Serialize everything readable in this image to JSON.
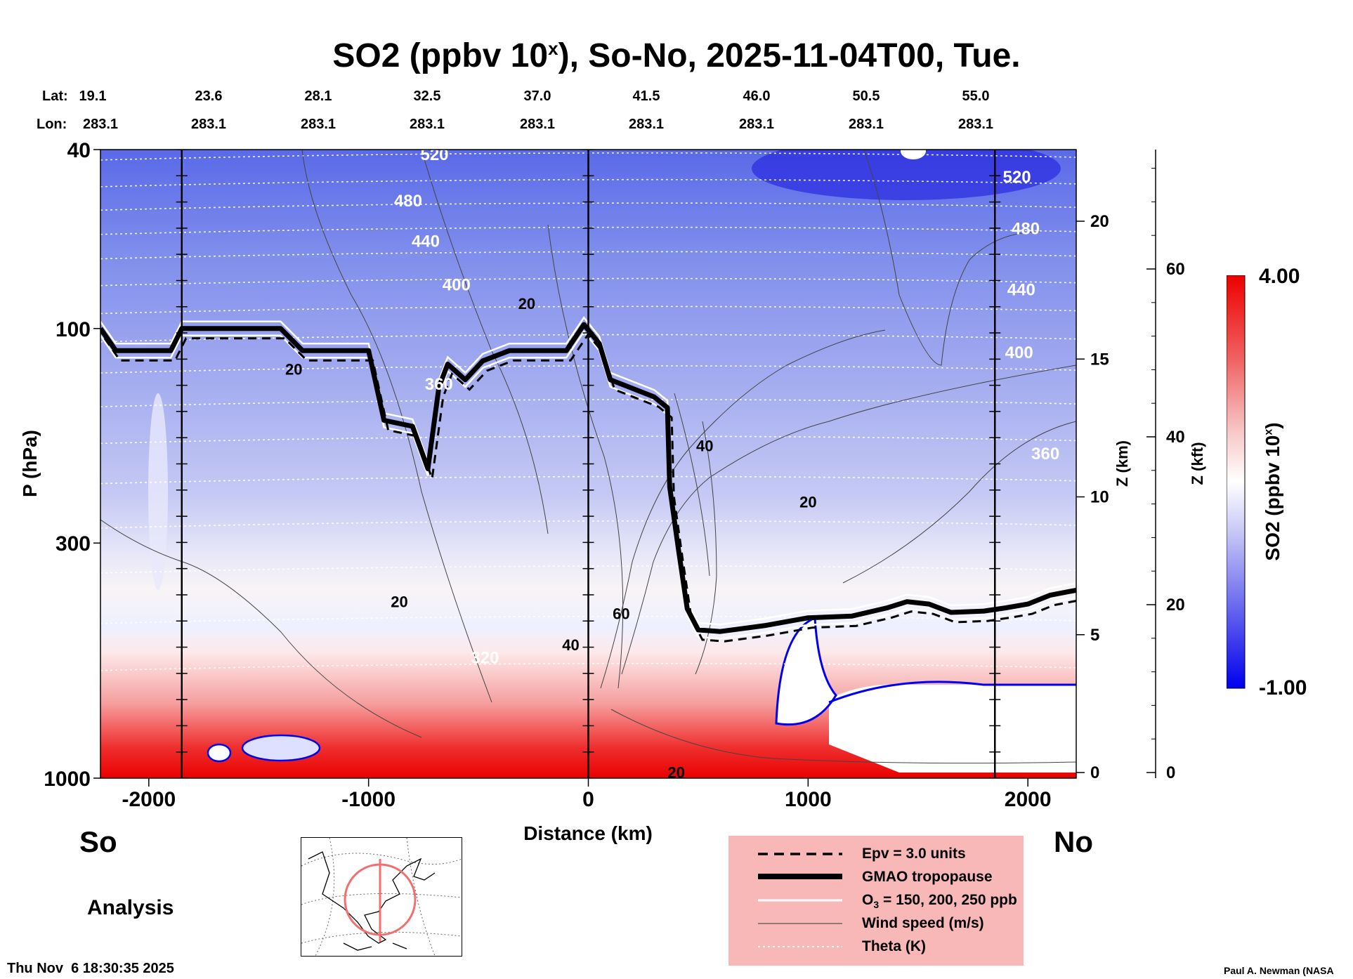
{
  "title": {
    "main": "SO2 (ppbv 10",
    "sup": "x",
    "tail": "), So-No, 2025-11-04T00, Tue."
  },
  "header": {
    "lat_label": "Lat:",
    "lon_label": "Lon:",
    "lats": [
      "19.1",
      "23.6",
      "28.1",
      "32.5",
      "37.0",
      "41.5",
      "46.0",
      "50.5",
      "55.0"
    ],
    "lons": [
      "283.1",
      "283.1",
      "283.1",
      "283.1",
      "283.1",
      "283.1",
      "283.1",
      "283.1",
      "283.1"
    ]
  },
  "chart_data": {
    "type": "heatmap",
    "title": "SO2 (ppbv 10^x), So-No, 2025-11-04T00, Tue.",
    "xlabel": "Distance (km)",
    "ylabel": "P (hPa)",
    "xlim": [
      -2220,
      2220
    ],
    "ylim": [
      1000,
      40
    ],
    "x_ticks": [
      -2000,
      -1000,
      0,
      1000,
      2000
    ],
    "y_ticks": [
      40,
      100,
      300,
      1000
    ],
    "z_km_label": "Z (km)",
    "z_km_ticks": [
      0,
      5,
      10,
      15,
      20
    ],
    "z_kft_label": "Z (kft)",
    "z_kft_ticks": [
      0,
      20,
      40,
      60
    ],
    "colorbar": {
      "label_main": "SO2 (ppbv 10",
      "label_sup": "x",
      "label_tail": ")",
      "min": -1.0,
      "max": 4.0,
      "min_label": "-1.00",
      "max_label": "4.00"
    },
    "vertical_markers_km": [
      -1850,
      0,
      1850
    ],
    "tropopause": [
      [
        -2220,
        100
      ],
      [
        -2150,
        112
      ],
      [
        -1900,
        112
      ],
      [
        -1850,
        100
      ],
      [
        -1400,
        100
      ],
      [
        -1300,
        112
      ],
      [
        -1000,
        112
      ],
      [
        -930,
        160
      ],
      [
        -800,
        165
      ],
      [
        -730,
        205
      ],
      [
        -680,
        135
      ],
      [
        -640,
        120
      ],
      [
        -560,
        130
      ],
      [
        -480,
        118
      ],
      [
        -360,
        112
      ],
      [
        -100,
        112
      ],
      [
        -20,
        98
      ],
      [
        50,
        108
      ],
      [
        100,
        130
      ],
      [
        300,
        142
      ],
      [
        360,
        150
      ],
      [
        370,
        225
      ],
      [
        410,
        310
      ],
      [
        450,
        420
      ],
      [
        500,
        468
      ],
      [
        600,
        472
      ],
      [
        800,
        458
      ],
      [
        1000,
        440
      ],
      [
        1200,
        436
      ],
      [
        1360,
        418
      ],
      [
        1450,
        405
      ],
      [
        1550,
        410
      ],
      [
        1650,
        428
      ],
      [
        1800,
        425
      ],
      [
        1900,
        418
      ],
      [
        2000,
        410
      ],
      [
        2100,
        392
      ],
      [
        2220,
        382
      ]
    ],
    "theta_K": [
      {
        "label": "520",
        "x_km": -700,
        "p_hpa": 41
      },
      {
        "label": "480",
        "x_km": -820,
        "p_hpa": 52
      },
      {
        "label": "440",
        "x_km": -740,
        "p_hpa": 64
      },
      {
        "label": "400",
        "x_km": -600,
        "p_hpa": 80
      },
      {
        "label": "360",
        "x_km": -680,
        "p_hpa": 133
      },
      {
        "label": "520",
        "x_km": 1950,
        "p_hpa": 46
      },
      {
        "label": "480",
        "x_km": 1990,
        "p_hpa": 60
      },
      {
        "label": "440",
        "x_km": 1970,
        "p_hpa": 82
      },
      {
        "label": "400",
        "x_km": 1960,
        "p_hpa": 113
      },
      {
        "label": "360",
        "x_km": 2080,
        "p_hpa": 190
      },
      {
        "label": "320",
        "x_km": -470,
        "p_hpa": 540
      }
    ],
    "wind_labels": [
      {
        "label": "20",
        "x_km": -280,
        "p_hpa": 88
      },
      {
        "label": "20",
        "x_km": -1340,
        "p_hpa": 123
      },
      {
        "label": "20",
        "x_km": -860,
        "p_hpa": 405
      },
      {
        "label": "40",
        "x_km": 530,
        "p_hpa": 182
      },
      {
        "label": "20",
        "x_km": 1000,
        "p_hpa": 243
      },
      {
        "label": "60",
        "x_km": 150,
        "p_hpa": 430
      },
      {
        "label": "40",
        "x_km": -80,
        "p_hpa": 505
      },
      {
        "label": "20",
        "x_km": 400,
        "p_hpa": 970
      }
    ]
  },
  "labels": {
    "so": "So",
    "no": "No",
    "analysis": "Analysis",
    "timestamp": "Thu Nov  6 18:30:35 2025",
    "credit": "Paul A. Newman (NASA"
  },
  "legend": {
    "items": [
      {
        "label": "Epv = 3.0 units",
        "sub": ""
      },
      {
        "label": "GMAO tropopause",
        "sub": ""
      },
      {
        "label": "O",
        "sub": "3",
        "tail": " = 150, 200, 250 ppb"
      },
      {
        "label": "Wind speed (m/s)",
        "sub": ""
      },
      {
        "label": "Theta (K)",
        "sub": ""
      }
    ]
  },
  "colors": {
    "high": "#ff0000",
    "low": "#0000ee",
    "mid": "#ffffff",
    "legend_bg": "#f8b8b8"
  }
}
